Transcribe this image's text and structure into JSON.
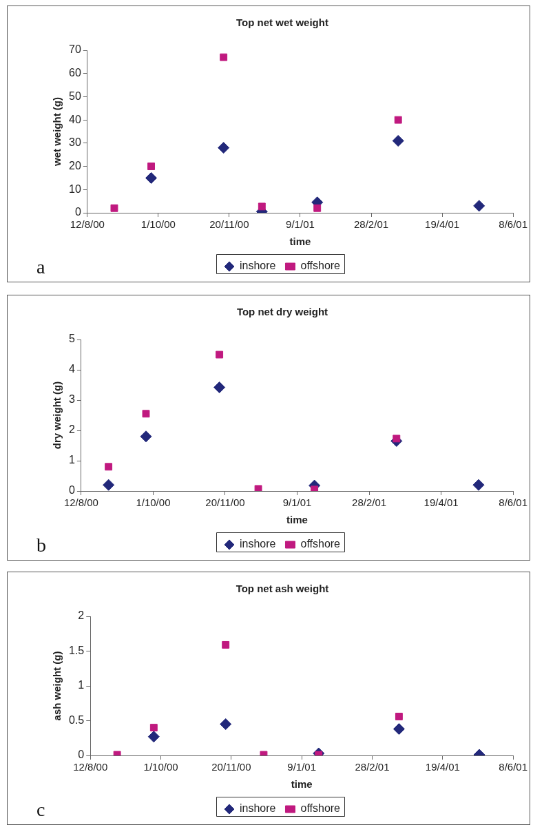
{
  "chart_data": [
    {
      "type": "scatter",
      "title": "Top net wet weight",
      "xlabel": "time",
      "ylabel": "wet weight (g)",
      "annotations": [
        "a"
      ],
      "legend": "bottom",
      "grid": false,
      "xlim": [
        "2000-08-12",
        "2001-06-08"
      ],
      "xticks": [
        {
          "value": "2000-08-12",
          "label": "12/8/00"
        },
        {
          "value": "2000-10-01",
          "label": "1/10/00"
        },
        {
          "value": "2000-11-20",
          "label": "20/11/00"
        },
        {
          "value": "2001-01-09",
          "label": "9/1/01"
        },
        {
          "value": "2001-02-28",
          "label": "28/2/01"
        },
        {
          "value": "2001-04-19",
          "label": "19/4/01"
        },
        {
          "value": "2001-06-08",
          "label": "8/6/01"
        }
      ],
      "ylim": [
        0,
        70
      ],
      "yticks": [
        0,
        10,
        20,
        30,
        40,
        50,
        60,
        70
      ],
      "x": [
        "2000-08-31",
        "2000-09-26",
        "2000-11-16",
        "2000-12-13",
        "2001-01-21",
        "2001-03-19",
        "2001-05-15"
      ],
      "series": [
        {
          "name": "inshore",
          "color": "#22287a",
          "marker": "diamond",
          "values": [
            null,
            15,
            28,
            0.5,
            4.5,
            31,
            3
          ]
        },
        {
          "name": "offshore",
          "color": "#c0197f",
          "marker": "square",
          "values": [
            2,
            20,
            67,
            2.7,
            2,
            40,
            null
          ]
        }
      ]
    },
    {
      "type": "scatter",
      "title": "Top net dry weight",
      "xlabel": "time",
      "ylabel": "dry weight (g)",
      "annotations": [
        "b"
      ],
      "legend": "bottom",
      "grid": false,
      "xlim": [
        "2000-08-12",
        "2001-06-08"
      ],
      "xticks": [
        {
          "value": "2000-08-12",
          "label": "12/8/00"
        },
        {
          "value": "2000-10-01",
          "label": "1/10/00"
        },
        {
          "value": "2000-11-20",
          "label": "20/11/00"
        },
        {
          "value": "2001-01-09",
          "label": "9/1/01"
        },
        {
          "value": "2001-02-28",
          "label": "28/2/01"
        },
        {
          "value": "2001-04-19",
          "label": "19/4/01"
        },
        {
          "value": "2001-06-08",
          "label": "8/6/01"
        }
      ],
      "ylim": [
        0,
        5
      ],
      "yticks": [
        0,
        1,
        2,
        3,
        4,
        5
      ],
      "x": [
        "2000-08-31",
        "2000-09-26",
        "2000-11-16",
        "2000-12-13",
        "2001-01-21",
        "2001-03-19",
        "2001-05-15"
      ],
      "series": [
        {
          "name": "inshore",
          "color": "#22287a",
          "marker": "diamond",
          "values": [
            0.2,
            1.8,
            3.42,
            null,
            0.18,
            1.65,
            0.2
          ]
        },
        {
          "name": "offshore",
          "color": "#c0197f",
          "marker": "square",
          "values": [
            0.8,
            2.55,
            4.5,
            0.07,
            0.05,
            1.73,
            null
          ]
        }
      ]
    },
    {
      "type": "scatter",
      "title": "Top net ash weight",
      "xlabel": "time",
      "ylabel": "ash weight (g)",
      "annotations": [
        "c"
      ],
      "legend": "bottom",
      "grid": false,
      "xlim": [
        "2000-08-12",
        "2001-06-08"
      ],
      "xticks": [
        {
          "value": "2000-08-12",
          "label": "12/8/00"
        },
        {
          "value": "2000-10-01",
          "label": "1/10/00"
        },
        {
          "value": "2000-11-20",
          "label": "20/11/00"
        },
        {
          "value": "2001-01-09",
          "label": "9/1/01"
        },
        {
          "value": "2001-02-28",
          "label": "28/2/01"
        },
        {
          "value": "2001-04-19",
          "label": "19/4/01"
        },
        {
          "value": "2001-06-08",
          "label": "8/6/01"
        }
      ],
      "ylim": [
        0,
        2
      ],
      "yticks": [
        0,
        0.5,
        1,
        1.5,
        2
      ],
      "x": [
        "2000-08-31",
        "2000-09-26",
        "2000-11-16",
        "2000-12-13",
        "2001-01-21",
        "2001-03-19",
        "2001-05-15"
      ],
      "series": [
        {
          "name": "inshore",
          "color": "#22287a",
          "marker": "diamond",
          "values": [
            null,
            0.27,
            0.45,
            null,
            0.03,
            0.38,
            0.01
          ]
        },
        {
          "name": "offshore",
          "color": "#c0197f",
          "marker": "square",
          "values": [
            0.01,
            0.4,
            1.59,
            0.01,
            0.01,
            0.56,
            null
          ]
        }
      ]
    }
  ]
}
